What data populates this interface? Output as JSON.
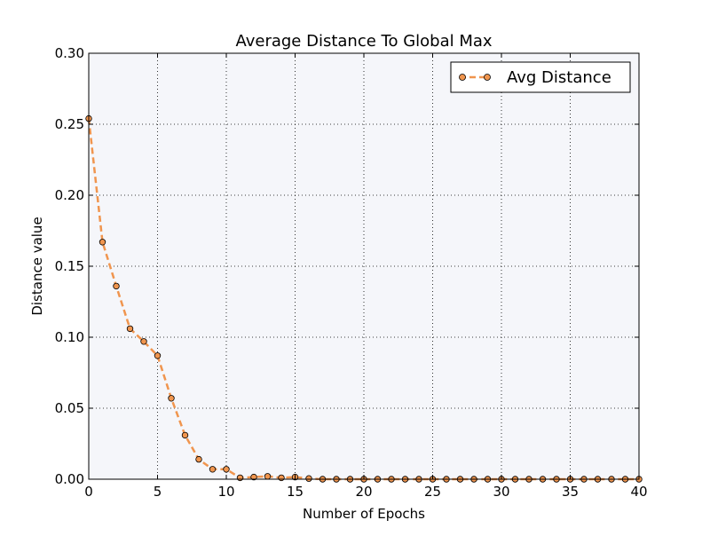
{
  "chart_data": {
    "type": "line",
    "title": "Average Distance To Global Max",
    "xlabel": "Number of Epochs",
    "ylabel": "Distance value",
    "xlim": [
      0,
      40
    ],
    "ylim": [
      0,
      0.3
    ],
    "xticks": [
      0,
      5,
      10,
      15,
      20,
      25,
      30,
      35,
      40
    ],
    "xtick_labels": [
      "0",
      "5",
      "10",
      "15",
      "20",
      "25",
      "30",
      "35",
      "40"
    ],
    "yticks": [
      0,
      0.05,
      0.1,
      0.15,
      0.2,
      0.25,
      0.3
    ],
    "ytick_labels": [
      "0.00",
      "0.05",
      "0.10",
      "0.15",
      "0.20",
      "0.25",
      "0.30"
    ],
    "grid": true,
    "legend_position": "top-right",
    "background_color": "#f5f6fa",
    "series": [
      {
        "name": "Avg Distance",
        "color": "#f0954e",
        "line_style": "dashed",
        "marker": "circle",
        "x": [
          0,
          1,
          2,
          3,
          4,
          5,
          6,
          7,
          8,
          9,
          10,
          11,
          12,
          13,
          14,
          15,
          16,
          17,
          18,
          19,
          20,
          21,
          22,
          23,
          24,
          25,
          26,
          27,
          28,
          29,
          30,
          31,
          32,
          33,
          34,
          35,
          36,
          37,
          38,
          39,
          40
        ],
        "y": [
          0.254,
          0.167,
          0.136,
          0.106,
          0.097,
          0.087,
          0.057,
          0.031,
          0.014,
          0.007,
          0.007,
          0.001,
          0.0015,
          0.002,
          0.001,
          0.0015,
          0.0005,
          0,
          0,
          0,
          0,
          0,
          0,
          0,
          0,
          0,
          0,
          0,
          0,
          0,
          0,
          0,
          0,
          0,
          0,
          0,
          0,
          0,
          0,
          0,
          0
        ]
      }
    ]
  }
}
